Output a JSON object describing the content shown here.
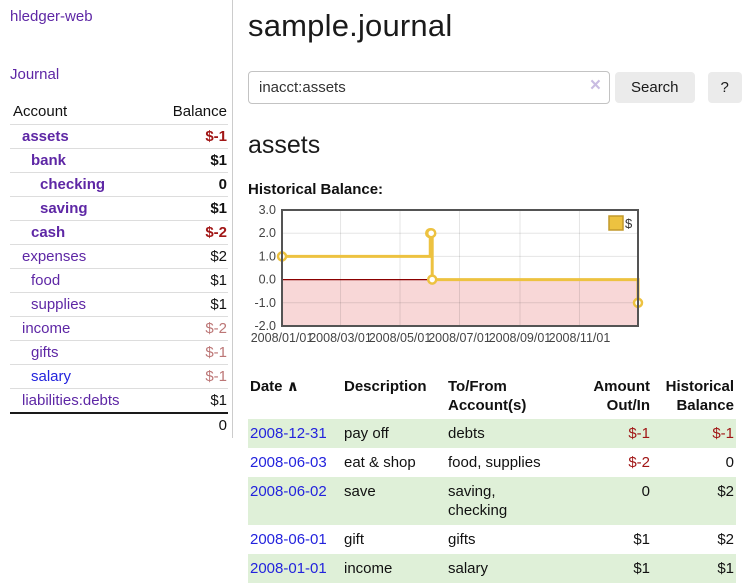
{
  "colors": {
    "purple": "#5e27a5",
    "blue": "#2323dd",
    "neg_strong": "#a11616",
    "neg_muted": "#bc7676",
    "row_green": "#dff0d8",
    "gold": "#edc240",
    "gold_border": "#c2992b",
    "pink_fill": "#f8d7d7",
    "zero_line": "#8b0000",
    "chart_border": "#545454",
    "axis_label": "#444444"
  },
  "app": {
    "title": "hledger-web",
    "nav_journal": "Journal"
  },
  "sidebar": {
    "table": {
      "account_header": "Account",
      "balance_header": "Balance",
      "total": "0"
    },
    "accounts": [
      {
        "name": "assets",
        "balance": "$-1",
        "depth": 0,
        "bold": true,
        "neg": true
      },
      {
        "name": "bank",
        "balance": "$1",
        "depth": 1,
        "bold": true,
        "neg": false
      },
      {
        "name": "checking",
        "balance": "0",
        "depth": 2,
        "bold": true,
        "neg": false
      },
      {
        "name": "saving",
        "balance": "$1",
        "depth": 2,
        "bold": true,
        "neg": false
      },
      {
        "name": "cash",
        "balance": "$-2",
        "depth": 1,
        "bold": true,
        "neg": true
      },
      {
        "name": "expenses",
        "balance": "$2",
        "depth": 0,
        "bold": false,
        "neg": false
      },
      {
        "name": "food",
        "balance": "$1",
        "depth": 1,
        "bold": false,
        "neg": false
      },
      {
        "name": "supplies",
        "balance": "$1",
        "depth": 1,
        "bold": false,
        "neg": false
      },
      {
        "name": "income",
        "balance": "$-2",
        "depth": 0,
        "bold": false,
        "neg": true
      },
      {
        "name": "gifts",
        "balance": "$-1",
        "depth": 1,
        "bold": false,
        "neg": true
      },
      {
        "name": "salary",
        "balance": "$-1",
        "depth": 1,
        "bold": false,
        "neg": true,
        "unvisited": true
      },
      {
        "name": "liabilities:debts",
        "balance": "$1",
        "depth": 0,
        "bold": false,
        "neg": false
      }
    ]
  },
  "main": {
    "title": "sample.journal",
    "search": {
      "value": "inacct:assets",
      "clear_icon": "×",
      "button_label": "Search",
      "help_label": "?"
    },
    "account_heading": "assets",
    "chart_label": "Historical Balance:",
    "chart_data": {
      "type": "line",
      "title": "Historical Balance:",
      "step": true,
      "series": [
        {
          "name": "$",
          "points": [
            [
              "2008-01-01",
              1
            ],
            [
              "2008-06-01",
              2
            ],
            [
              "2008-06-02",
              2
            ],
            [
              "2008-06-03",
              0
            ],
            [
              "2008-12-31",
              -1
            ]
          ]
        }
      ],
      "x_ticks": [
        "2008/01/01",
        "2008/03/01",
        "2008/05/01",
        "2008/07/01",
        "2008/09/01",
        "2008/11/01"
      ],
      "y_ticks": [
        "3.0",
        "2.0",
        "1.0",
        "0.0",
        "-1.0",
        "-2.0"
      ],
      "ylim": [
        -2,
        3
      ],
      "xlim": [
        "2008-01-01",
        "2008-12-31"
      ],
      "grid": true,
      "legend_position": "top-right",
      "negative_region_shaded": true
    },
    "register": {
      "headers": {
        "date": "Date",
        "sort_icon": "∧",
        "description": "Description",
        "to_from": "To/From Account(s)",
        "amount": "Amount Out/In",
        "balance": "Historical Balance"
      },
      "rows": [
        {
          "date": "2008-12-31",
          "description": "pay off",
          "to_from": "debts",
          "amount": "$-1",
          "amount_neg": true,
          "balance": "$-1",
          "balance_neg": true
        },
        {
          "date": "2008-06-03",
          "description": "eat & shop",
          "to_from": "food, supplies",
          "amount": "$-2",
          "amount_neg": true,
          "balance": "0",
          "balance_neg": false
        },
        {
          "date": "2008-06-02",
          "description": "save",
          "to_from": "saving,\nchecking",
          "amount": "0",
          "amount_neg": false,
          "balance": "$2",
          "balance_neg": false
        },
        {
          "date": "2008-06-01",
          "description": "gift",
          "to_from": "gifts",
          "amount": "$1",
          "amount_neg": false,
          "balance": "$2",
          "balance_neg": false
        },
        {
          "date": "2008-01-01",
          "description": "income",
          "to_from": "salary",
          "amount": "$1",
          "amount_neg": false,
          "balance": "$1",
          "balance_neg": false
        }
      ]
    }
  }
}
